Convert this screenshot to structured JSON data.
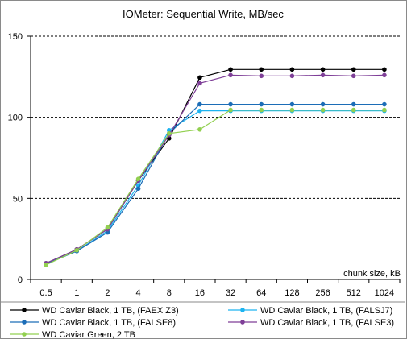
{
  "chart_data": {
    "type": "line",
    "title": "IOMeter: Sequential   Write, MB/sec",
    "xlabel": "chunk size, kB",
    "ylabel": "",
    "categories": [
      "0.5",
      "1",
      "2",
      "4",
      "8",
      "16",
      "32",
      "64",
      "128",
      "256",
      "512",
      "1024"
    ],
    "ylim": [
      0,
      150
    ],
    "yticks": [
      0,
      50,
      100,
      150
    ],
    "grid": "horizontal dashed",
    "legend_position": "bottom",
    "series": [
      {
        "name": "WD Caviar Black, 1 TB, (FAEX Z3)",
        "color": "#000000",
        "values": [
          10,
          18.5,
          31,
          61,
          87,
          124.5,
          129.5,
          129.5,
          129.5,
          129.5,
          129.5,
          129.5
        ]
      },
      {
        "name": "WD Caviar Black, 1 TB, (FALSJ7)",
        "color": "#1EB4F0",
        "values": [
          9.5,
          17.5,
          30,
          58,
          92,
          104,
          104,
          104,
          104,
          104,
          104,
          104
        ]
      },
      {
        "name": "WD Caviar Black, 1 TB, (FALSE8)",
        "color": "#1C6DB7",
        "values": [
          9.5,
          17.5,
          29,
          56,
          90,
          108,
          108,
          108,
          108,
          108,
          108,
          108
        ]
      },
      {
        "name": "WD Caviar Black, 1 TB, (FALSE3)",
        "color": "#7F3F98",
        "values": [
          10,
          18.5,
          31,
          61,
          89,
          121,
          126,
          125.5,
          125.5,
          126,
          125.5,
          126
        ]
      },
      {
        "name": "WD Caviar Green, 2 TB",
        "color": "#92D050",
        "values": [
          9,
          18,
          32,
          62,
          90,
          92.5,
          104.5,
          104.5,
          104.5,
          104.5,
          104.5,
          104.5
        ]
      }
    ]
  }
}
